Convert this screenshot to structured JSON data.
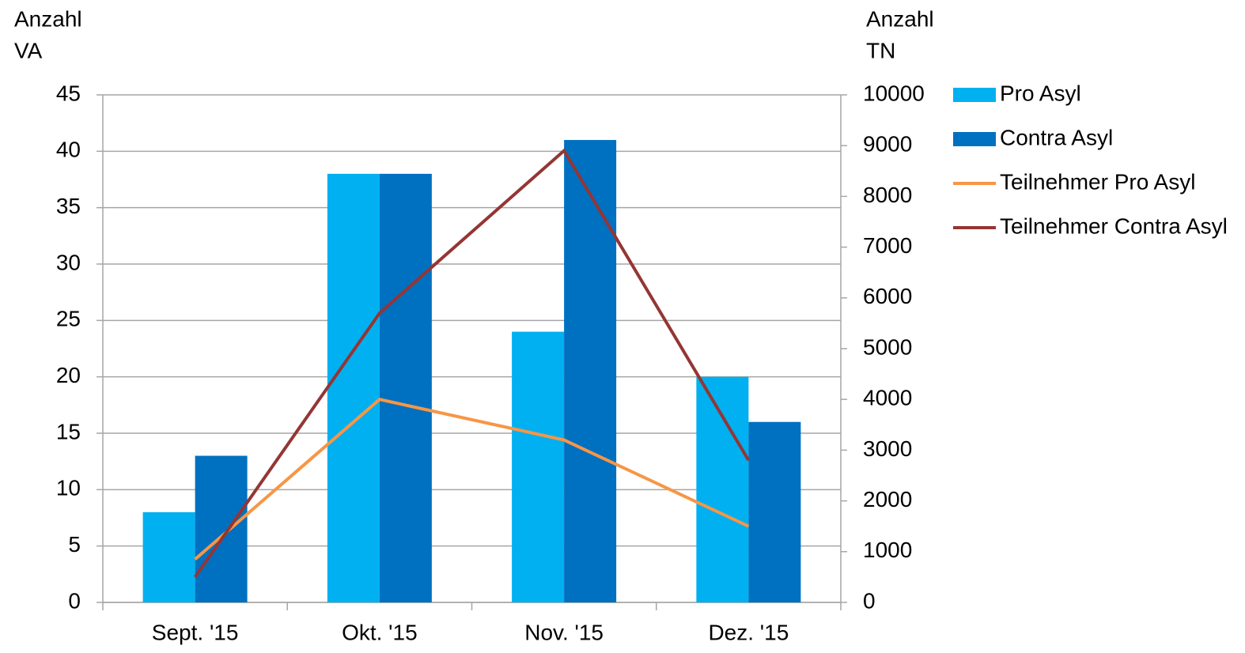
{
  "chart_data": {
    "type": "bar",
    "ylabel": [
      "Anzahl",
      "VA"
    ],
    "y2label": [
      "Anzahl",
      "TN"
    ],
    "categories": [
      "Sept. '15",
      "Okt. '15",
      "Nov. '15",
      "Dez. '15"
    ],
    "series": [
      {
        "name": "Pro Asyl",
        "color": "#00b0f0",
        "type": "bar",
        "values": [
          8,
          38,
          24,
          20
        ]
      },
      {
        "name": "Contra Asyl",
        "color": "#0070c0",
        "type": "bar",
        "values": [
          13,
          38,
          41,
          16
        ]
      },
      {
        "name": "Teilnehmer Pro Asyl",
        "color": "#f79646",
        "type": "line",
        "axis": "y2",
        "values": [
          850,
          4000,
          3200,
          1500
        ]
      },
      {
        "name": "Teilnehmer Contra Asyl",
        "color": "#943634",
        "type": "line",
        "axis": "y2",
        "values": [
          500,
          5700,
          8900,
          2800
        ]
      }
    ],
    "ylim": [
      0,
      45
    ],
    "yticks": [
      0,
      5,
      10,
      15,
      20,
      25,
      30,
      35,
      40,
      45
    ],
    "y2lim": [
      0,
      10000
    ],
    "y2ticks": [
      0,
      1000,
      2000,
      3000,
      4000,
      5000,
      6000,
      7000,
      8000,
      9000,
      10000
    ],
    "grid": true,
    "legend": "right"
  }
}
